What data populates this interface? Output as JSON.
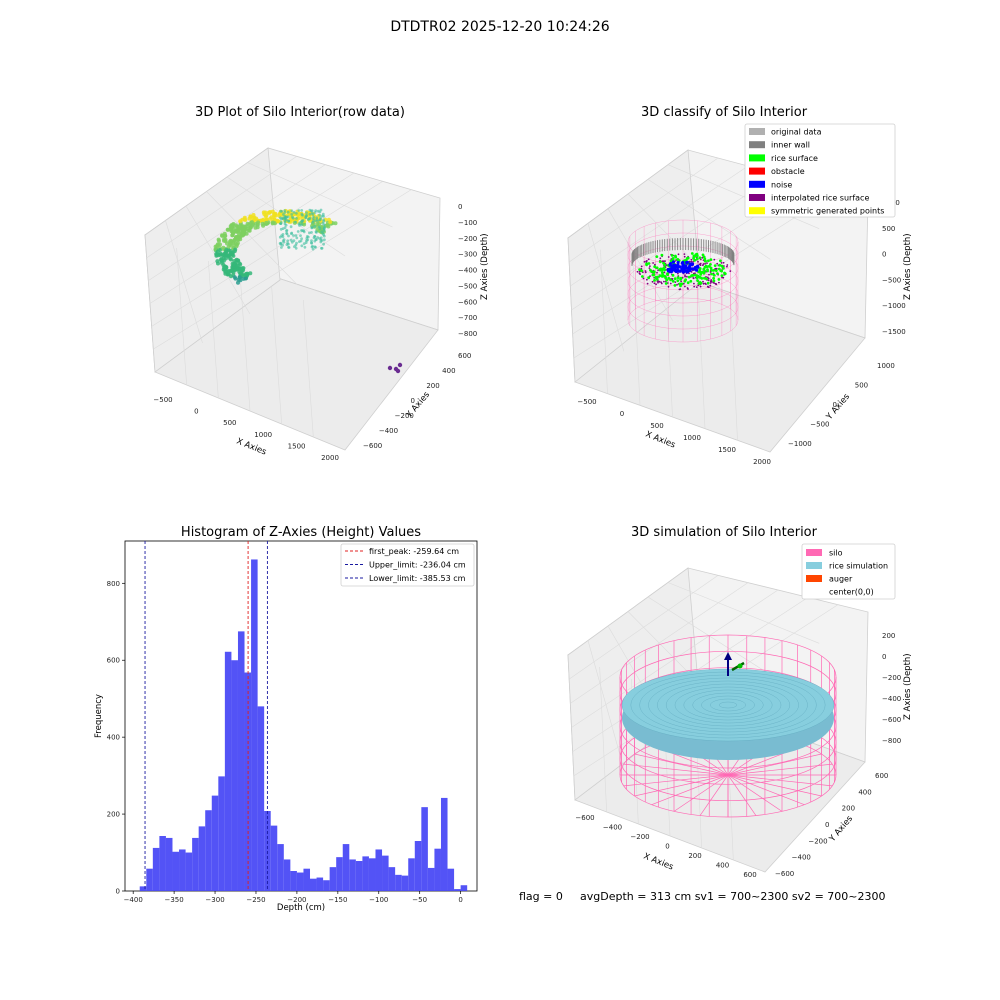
{
  "figure_title": "DTDTR02 2025-12-20 10:24:26",
  "footer": {
    "flag": "flag = 0",
    "stats": "avgDepth = 313 cm  sv1 = 700~2300  sv2 = 700~2300"
  },
  "colors": {
    "hist_bar": "#4a4af5",
    "first_peak_line": "#e02020",
    "limit_line": "#1a1aa0",
    "silo": "#ff69b4",
    "rice_simulation": "#87cede",
    "auger": "#ff4500",
    "inner_wall": "#808080",
    "rice_surface": "#00ff00",
    "obstacle": "#ff0000",
    "noise": "#0000ff",
    "interpolated": "#800080",
    "symmetric": "#ffff00",
    "original": "#b0b0b0"
  },
  "chart_data": [
    {
      "type": "scatter",
      "title": "3D Plot of Silo Interior(row data)",
      "xlabel": "X Axies",
      "ylabel": "Y Axies",
      "zlabel": "Z Axies (Depth)",
      "x_ticks": [
        "−500",
        "0",
        "500",
        "1000",
        "1500",
        "2000"
      ],
      "y_ticks": [
        "−600",
        "−400",
        "−200",
        "0",
        "200",
        "400",
        "600"
      ],
      "z_ticks": [
        "0",
        "−100",
        "−200",
        "−300",
        "−400",
        "−500",
        "−600",
        "−700",
        "−800"
      ],
      "zlim": [
        -800,
        0
      ]
    },
    {
      "type": "scatter",
      "title": "3D classify of Silo Interior",
      "xlabel": "X Axies",
      "ylabel": "Y Axies",
      "zlabel": "Z Axies (Depth)",
      "x_ticks": [
        "−500",
        "0",
        "500",
        "1000",
        "1500",
        "2000"
      ],
      "y_ticks": [
        "−1000",
        "−500",
        "0",
        "500",
        "1000"
      ],
      "z_ticks": [
        "1000",
        "500",
        "0",
        "−500",
        "−1000",
        "−1500"
      ],
      "legend": [
        "original data",
        "inner wall",
        "rice surface",
        "obstacle",
        "noise",
        "interpolated rice surface",
        "symmetric generated points"
      ],
      "legend_position": "top-right"
    },
    {
      "type": "bar",
      "title": "Histogram of Z-Axies (Height) Values",
      "xlabel": "Depth (cm)",
      "ylabel": "Frequency",
      "xlim": [
        -410,
        20
      ],
      "ylim": [
        0,
        910
      ],
      "x_ticks": [
        -400,
        -350,
        -300,
        -250,
        -200,
        -150,
        -100,
        -50,
        0
      ],
      "x_tick_labels": [
        "−400",
        "−350",
        "−300",
        "−250",
        "−200",
        "−150",
        "−100",
        "−50",
        "0"
      ],
      "y_ticks": [
        0,
        200,
        400,
        600,
        800
      ],
      "y_tick_labels": [
        "0",
        "200",
        "400",
        "600",
        "800"
      ],
      "bin_start": -392,
      "bin_width": 8,
      "values": [
        12,
        58,
        112,
        143,
        138,
        102,
        108,
        100,
        138,
        168,
        210,
        248,
        298,
        622,
        600,
        675,
        568,
        862,
        480,
        208,
        170,
        122,
        82,
        52,
        48,
        58,
        32,
        35,
        28,
        62,
        88,
        122,
        82,
        78,
        90,
        85,
        108,
        92,
        62,
        42,
        40,
        85,
        130,
        218,
        60,
        110,
        242,
        58,
        5,
        15
      ],
      "lines": [
        {
          "x": -259.64,
          "label": "first_peak: -259.64 cm",
          "style": "dashed",
          "color": "#e02020"
        },
        {
          "x": -236.04,
          "label": "Upper_limit: -236.04 cm",
          "style": "dashed",
          "color": "#1a1aa0"
        },
        {
          "x": -385.53,
          "label": "Lower_limit: -385.53 cm",
          "style": "dashed",
          "color": "#1a1aa0"
        }
      ],
      "legend_position": "top-right"
    },
    {
      "type": "scatter",
      "title": "3D simulation of Silo Interior",
      "xlabel": "X Axies",
      "ylabel": "Y Axies",
      "zlabel": "Z Axies (Depth)",
      "x_ticks": [
        "−600",
        "−400",
        "−200",
        "0",
        "200",
        "400",
        "600"
      ],
      "y_ticks": [
        "−600",
        "−400",
        "−200",
        "0",
        "200",
        "400",
        "600"
      ],
      "z_ticks": [
        "200",
        "0",
        "−200",
        "−400",
        "−600",
        "−800"
      ],
      "legend": [
        "silo",
        "rice simulation",
        "auger",
        "center(0,0)"
      ],
      "legend_position": "top-right"
    }
  ]
}
